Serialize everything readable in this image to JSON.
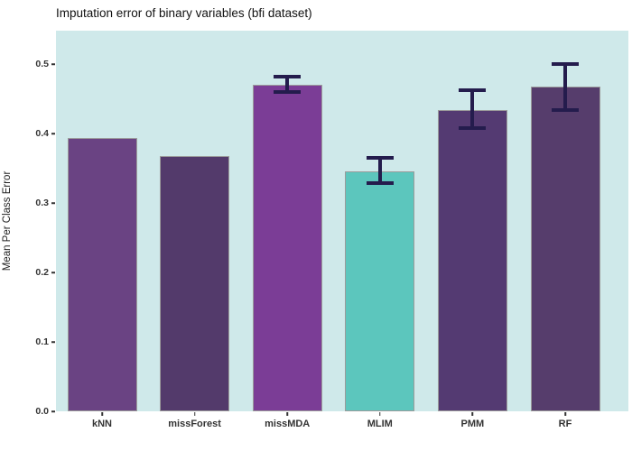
{
  "title": "Imputation error of binary variables (bfi dataset)",
  "chart_data": {
    "type": "bar",
    "title": "Imputation error of binary variables (bfi dataset)",
    "categories": [
      "kNN",
      "missForest",
      "missMDA",
      "MLIM",
      "PMM",
      "RF"
    ],
    "values": [
      0.393,
      0.368,
      0.47,
      0.346,
      0.434,
      0.467
    ],
    "error_low": [
      null,
      null,
      0.457,
      0.326,
      0.405,
      0.431
    ],
    "error_high": [
      null,
      null,
      0.485,
      0.367,
      0.465,
      0.503
    ],
    "bar_colors": [
      "#6a4383",
      "#533a6b",
      "#7b3d96",
      "#5cc6bd",
      "#543a72",
      "#563d6c"
    ],
    "xlabel": "",
    "ylabel": "Mean Per Class Error",
    "ylim": [
      0,
      0.548
    ],
    "yticks": [
      0.0,
      0.1,
      0.2,
      0.3,
      0.4,
      0.5
    ],
    "grid": false,
    "legend": "none",
    "plot_bg": "#cfe9ea",
    "bar_border_color": "#9b9b9b",
    "errorbar_color": "#241c4d"
  }
}
